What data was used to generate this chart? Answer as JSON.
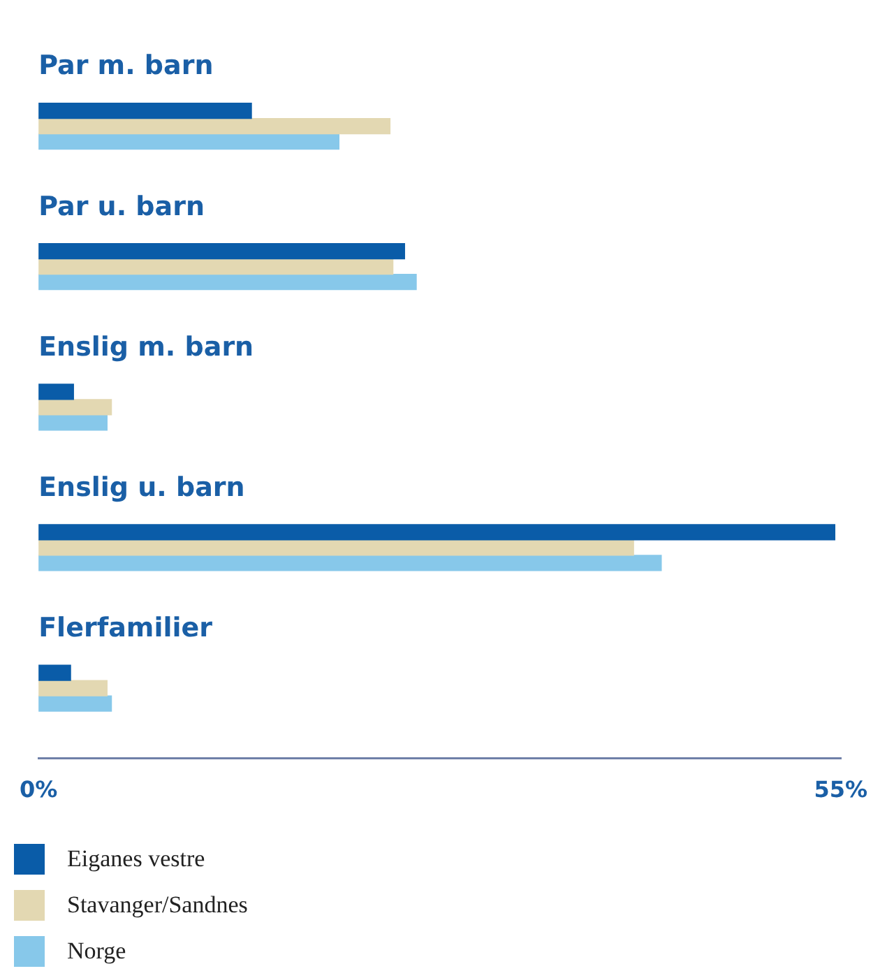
{
  "chart_data": {
    "type": "bar",
    "orientation": "horizontal",
    "categories": [
      "Par m. barn",
      "Par u. barn",
      "Enslig m. barn",
      "Enslig u. barn",
      "Flerfamilier"
    ],
    "series": [
      {
        "name": "Eiganes vestre",
        "color": "#0a5ca8",
        "values": [
          14.6,
          25.1,
          2.4,
          54.6,
          2.2
        ]
      },
      {
        "name": "Stavanger/Sandnes",
        "color": "#e3d8b2",
        "values": [
          24.1,
          24.3,
          5.0,
          40.8,
          4.7
        ]
      },
      {
        "name": "Norge",
        "color": "#87c8ea",
        "values": [
          20.6,
          25.9,
          4.7,
          42.7,
          5.0
        ]
      }
    ],
    "xlim": [
      0,
      55
    ],
    "xticks": [
      {
        "value": 0,
        "label": "0%"
      },
      {
        "value": 55,
        "label": "55%"
      }
    ],
    "grid": false,
    "legend": "bottom"
  }
}
